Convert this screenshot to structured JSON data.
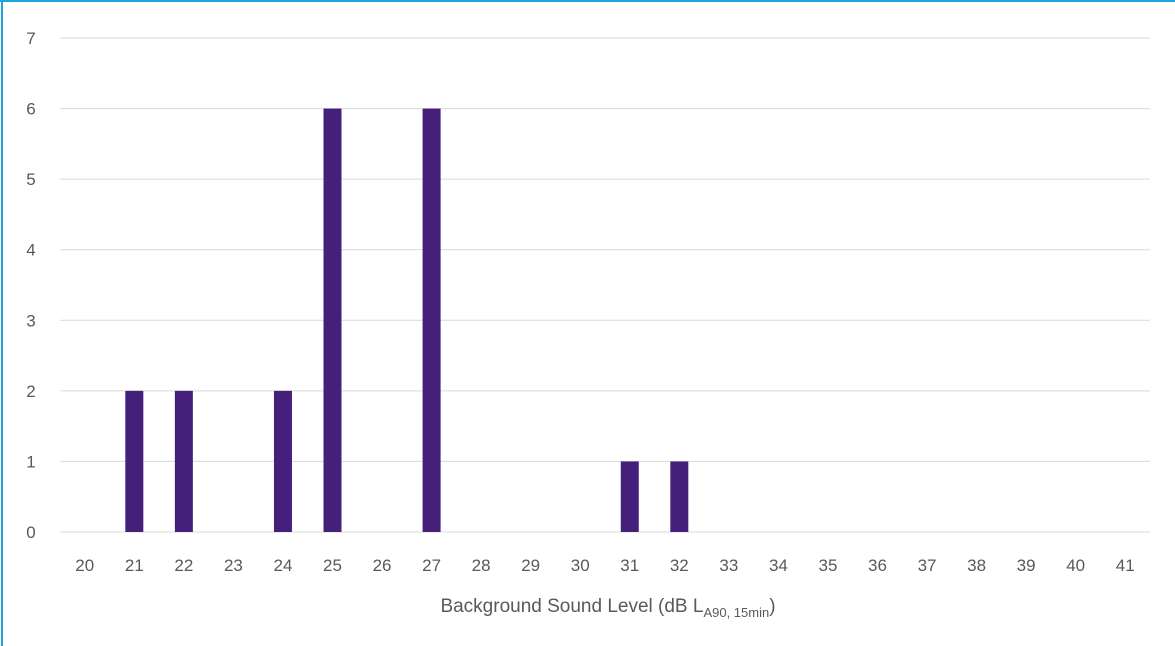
{
  "chart_data": {
    "type": "bar",
    "title": "",
    "xlabel": {
      "main": "Background Sound Level (dB L",
      "subscript": "A90, 15min",
      "close": ")"
    },
    "ylabel": "",
    "categories": [
      "20",
      "21",
      "22",
      "23",
      "24",
      "25",
      "26",
      "27",
      "28",
      "29",
      "30",
      "31",
      "32",
      "33",
      "34",
      "35",
      "36",
      "37",
      "38",
      "39",
      "40",
      "41"
    ],
    "values": [
      0,
      2,
      2,
      0,
      2,
      6,
      0,
      6,
      0,
      0,
      0,
      1,
      1,
      0,
      0,
      0,
      0,
      0,
      0,
      0,
      0,
      0
    ],
    "ylim": [
      0,
      7
    ],
    "yticks": [
      0,
      1,
      2,
      3,
      4,
      5,
      6,
      7
    ],
    "grid": true,
    "legend": "none",
    "colors": {
      "bar": "#44207a",
      "grid": "#d9d9d9",
      "text": "#595959",
      "frame": "#1fa3dc"
    }
  }
}
